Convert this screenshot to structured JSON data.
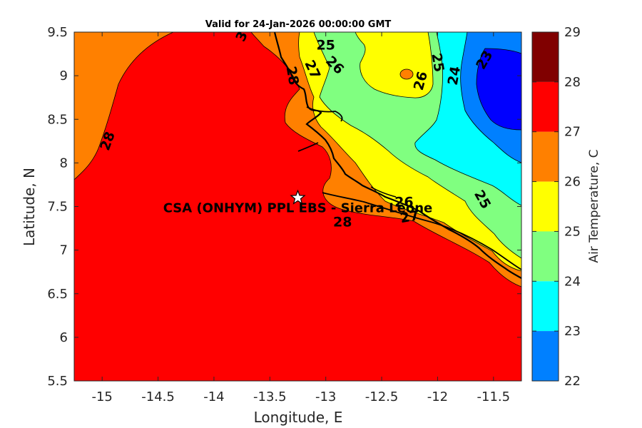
{
  "title": "Valid for 24-Jan-2026 00:00:00 GMT",
  "colors": {
    "c22_23": "#0000ff",
    "c23_24": "#0080ff",
    "c24_25": "#00ffff",
    "c25_26": "#80ff80",
    "c26_27": "#ffff00",
    "c27_28": "#ff8000",
    "c28_29": "#ff0000",
    "c29": "#800000"
  },
  "chart_data": {
    "type": "heatmap",
    "title": "Valid for 24-Jan-2026 00:00:00 GMT",
    "xlabel": "Longitude, E",
    "ylabel": "Latitude, N",
    "xlim": [
      -15.25,
      -11.25
    ],
    "ylim": [
      5.5,
      9.5
    ],
    "xticks": [
      -15,
      -14.5,
      -14,
      -13.5,
      -13,
      -12.5,
      -12,
      -11.5
    ],
    "xtick_labels": [
      "-15",
      "-14.5",
      "-14",
      "-13.5",
      "-13",
      "-12.5",
      "-12",
      "-11.5"
    ],
    "yticks": [
      5.5,
      6,
      6.5,
      7,
      7.5,
      8,
      8.5,
      9,
      9.5
    ],
    "ytick_labels": [
      "5.5",
      "6",
      "6.5",
      "7",
      "7.5",
      "8",
      "8.5",
      "9",
      "9.5"
    ],
    "colorbar": {
      "label": "Air Temperature, C",
      "min": 22,
      "max": 29,
      "ticks": [
        22,
        23,
        24,
        25,
        26,
        27,
        28,
        29
      ],
      "tick_labels": [
        "22",
        "23",
        "24",
        "25",
        "26",
        "27",
        "28",
        "29"
      ]
    },
    "contour_labels": [
      {
        "text": "28",
        "lon": -14.95,
        "lat": 8.25,
        "rot": -70
      },
      {
        "text": "3",
        "lon": -13.75,
        "lat": 9.45,
        "rot": -65
      },
      {
        "text": "25",
        "lon": -13.0,
        "lat": 9.35,
        "rot": 0
      },
      {
        "text": "26",
        "lon": -12.92,
        "lat": 9.12,
        "rot": 45
      },
      {
        "text": "27",
        "lon": -13.12,
        "lat": 9.07,
        "rot": 65
      },
      {
        "text": "28",
        "lon": -13.3,
        "lat": 9.0,
        "rot": 80
      },
      {
        "text": "26",
        "lon": -12.15,
        "lat": 8.94,
        "rot": -75
      },
      {
        "text": "25",
        "lon": -12.0,
        "lat": 9.15,
        "rot": 80
      },
      {
        "text": "24",
        "lon": -11.85,
        "lat": 9.0,
        "rot": -80
      },
      {
        "text": "23",
        "lon": -11.58,
        "lat": 9.18,
        "rot": -60
      },
      {
        "text": "25",
        "lon": -11.6,
        "lat": 7.58,
        "rot": 60
      },
      {
        "text": "26",
        "lon": -12.3,
        "lat": 7.55,
        "rot": 0
      },
      {
        "text": "27",
        "lon": -12.25,
        "lat": 7.38,
        "rot": -10
      },
      {
        "text": "28",
        "lon": -12.85,
        "lat": 7.32,
        "rot": 0
      }
    ],
    "site": {
      "name": "CSA (ONHYM) PPL EBS - Sierra Leone",
      "lon": -13.25,
      "lat": 7.6
    }
  }
}
